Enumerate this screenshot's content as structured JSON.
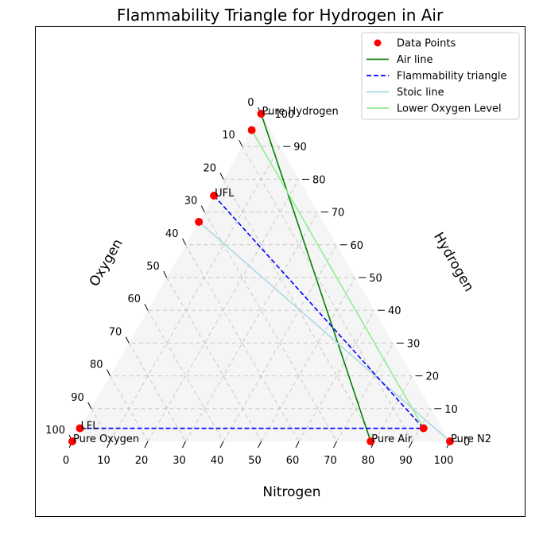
{
  "chart_data": {
    "type": "ternary",
    "title": "Flammability Triangle for Hydrogen in Air",
    "axes": {
      "bottom": {
        "label": "Nitrogen"
      },
      "left": {
        "label": "Oxygen"
      },
      "right": {
        "label": "Hydrogen"
      }
    },
    "ticks": [
      0,
      10,
      20,
      30,
      40,
      50,
      60,
      70,
      80,
      90,
      100
    ],
    "grid": true,
    "legend": {
      "placement": "top-right",
      "entries": [
        {
          "label": "Data Points",
          "color": "#ff0000",
          "kind": "marker"
        },
        {
          "label": "Air line",
          "color": "#008000",
          "kind": "solid"
        },
        {
          "label": "Flammability triangle",
          "color": "#0000ff",
          "kind": "dashed"
        },
        {
          "label": "Stoic line",
          "color": "#add8e6",
          "kind": "solid"
        },
        {
          "label": "Lower Oxygen Level",
          "color": "#90ee90",
          "kind": "solid"
        }
      ]
    },
    "points": [
      {
        "label": "Pure Hydrogen",
        "nitrogen": 0,
        "oxygen": 0,
        "hydrogen": 100
      },
      {
        "label": "Pure Oxygen",
        "nitrogen": 0,
        "oxygen": 100,
        "hydrogen": 0
      },
      {
        "label": "Pure N2",
        "nitrogen": 100,
        "oxygen": 0,
        "hydrogen": 0
      },
      {
        "label": "Pure Air",
        "nitrogen": 79,
        "oxygen": 21,
        "hydrogen": 0
      },
      {
        "label": "LFL",
        "nitrogen": 0,
        "oxygen": 96,
        "hydrogen": 4
      },
      {
        "label": "UFL",
        "nitrogen": 0,
        "oxygen": 25,
        "hydrogen": 75
      },
      {
        "label": "",
        "nitrogen": 0,
        "oxygen": 5,
        "hydrogen": 95
      },
      {
        "label": "",
        "nitrogen": 0,
        "oxygen": 33,
        "hydrogen": 67
      },
      {
        "label": "",
        "nitrogen": 91,
        "oxygen": 5,
        "hydrogen": 4
      }
    ],
    "lines": [
      {
        "series": "Air line",
        "from": {
          "nitrogen": 0,
          "oxygen": 0,
          "hydrogen": 100
        },
        "to": {
          "nitrogen": 79,
          "oxygen": 21,
          "hydrogen": 0
        }
      },
      {
        "series": "Lower Oxygen Level",
        "from": {
          "nitrogen": 0,
          "oxygen": 5,
          "hydrogen": 95
        },
        "to": {
          "nitrogen": 91,
          "oxygen": 5,
          "hydrogen": 4
        }
      },
      {
        "series": "Stoic line",
        "from": {
          "nitrogen": 0,
          "oxygen": 33,
          "hydrogen": 67
        },
        "to": {
          "nitrogen": 100,
          "oxygen": 0,
          "hydrogen": 0
        }
      },
      {
        "series": "Flammability triangle",
        "from": {
          "nitrogen": 0,
          "oxygen": 25,
          "hydrogen": 75
        },
        "to": {
          "nitrogen": 91,
          "oxygen": 5,
          "hydrogen": 4
        }
      },
      {
        "series": "Flammability triangle",
        "from": {
          "nitrogen": 0,
          "oxygen": 96,
          "hydrogen": 4
        },
        "to": {
          "nitrogen": 91,
          "oxygen": 5,
          "hydrogen": 4
        }
      }
    ]
  }
}
